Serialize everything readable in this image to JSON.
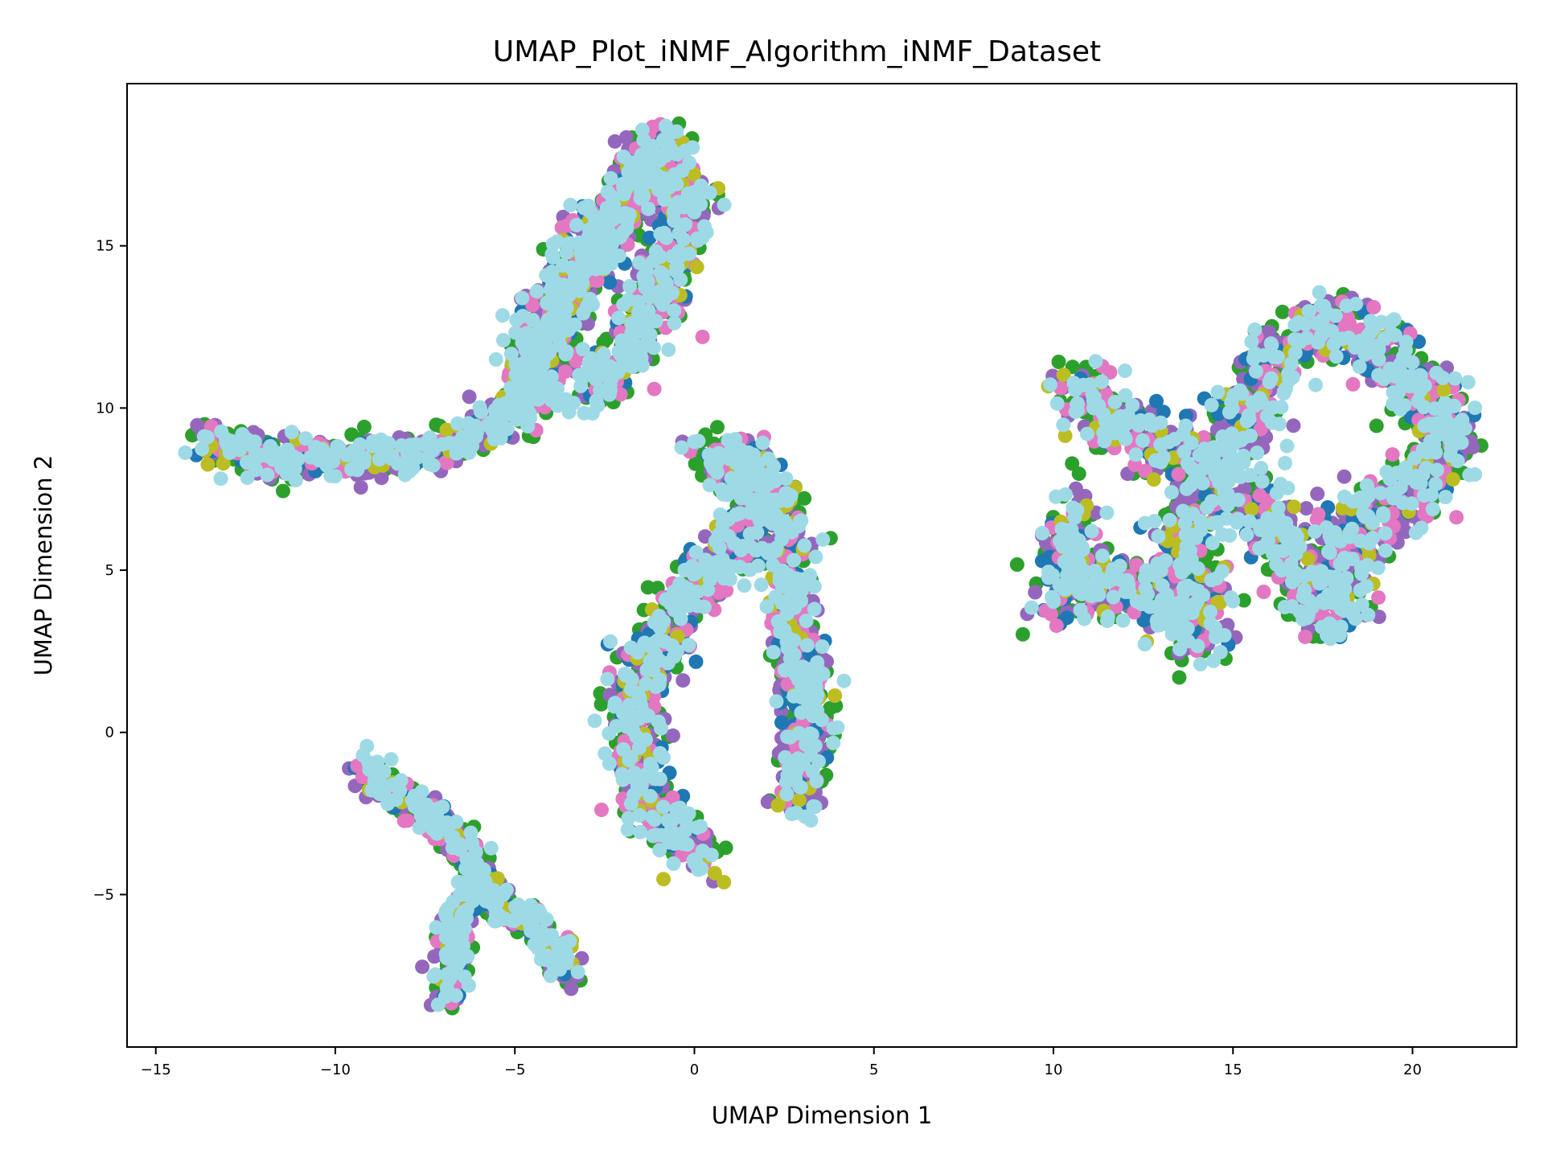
{
  "chart_data": {
    "type": "scatter",
    "title": "UMAP_Plot_iNMF_Algorithm_iNMF_Dataset",
    "xlabel": "UMAP Dimension 1",
    "ylabel": "UMAP Dimension 2",
    "xlim": [
      -15.8,
      22.9
    ],
    "ylim": [
      -9.7,
      20.0
    ],
    "xticks": [
      -15,
      -10,
      -5,
      0,
      5,
      10,
      15,
      20
    ],
    "yticks": [
      -5,
      0,
      5,
      10,
      15
    ],
    "xtick_labels": [
      "−15",
      "−10",
      "−5",
      "0",
      "5",
      "10",
      "15",
      "20"
    ],
    "ytick_labels": [
      "−5",
      "0",
      "5",
      "10",
      "15"
    ],
    "grid": false,
    "legend": "none",
    "point_colors": [
      "#2ca02c",
      "#9467bd",
      "#1f77b4",
      "#e377c2",
      "#bcbd22",
      "#9edae5"
    ],
    "clusters": [
      {
        "id": "top-left-arm",
        "points": [
          [
            -13.9,
            8.7
          ],
          [
            -13.0,
            8.9
          ],
          [
            -12.0,
            8.5
          ],
          [
            -11.0,
            8.3
          ],
          [
            -10.0,
            8.5
          ],
          [
            -9.0,
            8.6
          ],
          [
            -8.0,
            8.4
          ],
          [
            -7.0,
            8.9
          ],
          [
            -6.0,
            9.3
          ],
          [
            -5.0,
            9.8
          ],
          [
            -4.5,
            10.8
          ],
          [
            -4.0,
            12.0
          ],
          [
            -3.6,
            13.2
          ],
          [
            -3.0,
            14.4
          ],
          [
            -2.3,
            15.6
          ],
          [
            -1.6,
            16.8
          ],
          [
            -0.9,
            17.9
          ],
          [
            -0.5,
            18.4
          ]
        ],
        "width": 0.55
      },
      {
        "id": "top-left-lobe",
        "points": [
          [
            -4.8,
            10.0
          ],
          [
            -4.2,
            12.5
          ],
          [
            -3.2,
            14.5
          ],
          [
            -2.0,
            16.5
          ],
          [
            -1.0,
            17.8
          ],
          [
            -0.2,
            16.0
          ],
          [
            -0.8,
            14.0
          ],
          [
            -1.8,
            12.0
          ],
          [
            -3.0,
            10.2
          ]
        ],
        "width": 0.8
      },
      {
        "id": "bottom-left-fork",
        "points": [
          [
            -9.3,
            -1.0
          ],
          [
            -8.5,
            -1.8
          ],
          [
            -7.5,
            -2.5
          ],
          [
            -6.5,
            -3.3
          ],
          [
            -6.0,
            -4.4
          ],
          [
            -5.5,
            -5.4
          ],
          [
            -4.5,
            -5.9
          ],
          [
            -4.0,
            -6.5
          ],
          [
            -3.6,
            -7.6
          ]
        ],
        "width": 0.45
      },
      {
        "id": "bottom-left-branch",
        "points": [
          [
            -6.2,
            -4.8
          ],
          [
            -6.6,
            -5.9
          ],
          [
            -6.8,
            -7.0
          ],
          [
            -7.0,
            -8.3
          ]
        ],
        "width": 0.4
      },
      {
        "id": "center-crescent",
        "points": [
          [
            0.3,
            -4.1
          ],
          [
            -0.8,
            -3.0
          ],
          [
            -1.5,
            -1.5
          ],
          [
            -1.7,
            0.0
          ],
          [
            -1.6,
            1.5
          ],
          [
            -1.0,
            3.0
          ],
          [
            -0.3,
            4.1
          ],
          [
            0.6,
            5.0
          ],
          [
            1.4,
            6.2
          ],
          [
            1.9,
            7.4
          ],
          [
            1.2,
            8.3
          ],
          [
            0.2,
            8.5
          ]
        ],
        "width": 0.75
      },
      {
        "id": "center-right-band",
        "points": [
          [
            2.9,
            -2.2
          ],
          [
            3.2,
            0.0
          ],
          [
            3.0,
            2.0
          ],
          [
            2.6,
            4.0
          ],
          [
            2.6,
            6.0
          ],
          [
            2.2,
            7.5
          ],
          [
            1.2,
            8.6
          ]
        ],
        "width": 0.65
      },
      {
        "id": "right-bowtie",
        "points": [
          [
            10.4,
            10.7
          ],
          [
            11.5,
            9.5
          ],
          [
            12.5,
            9.0
          ],
          [
            13.5,
            8.6
          ],
          [
            14.5,
            7.8
          ],
          [
            13.5,
            6.0
          ],
          [
            13.8,
            4.0
          ],
          [
            14.2,
            2.9
          ],
          [
            12.5,
            4.5
          ],
          [
            11.0,
            4.5
          ],
          [
            10.3,
            4.1
          ],
          [
            10.7,
            7.0
          ]
        ],
        "width": 0.9
      },
      {
        "id": "right-blob",
        "points": [
          [
            15.0,
            8.5
          ],
          [
            15.6,
            10.8
          ],
          [
            16.5,
            12.0
          ],
          [
            17.8,
            12.7
          ],
          [
            19.3,
            11.5
          ],
          [
            20.5,
            10.3
          ],
          [
            21.0,
            9.2
          ],
          [
            20.5,
            7.8
          ],
          [
            19.5,
            7.0
          ],
          [
            18.3,
            6.4
          ],
          [
            17.8,
            3.5
          ],
          [
            17.1,
            4.5
          ],
          [
            16.4,
            6.0
          ],
          [
            15.3,
            7.2
          ]
        ],
        "width": 0.9
      }
    ]
  }
}
